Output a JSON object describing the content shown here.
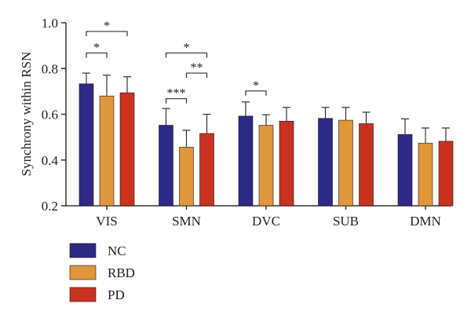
{
  "chart_data": {
    "type": "bar",
    "title": "",
    "xlabel": "",
    "ylabel": "Synchrony within RSN",
    "ylim": [
      0.2,
      1.0
    ],
    "yticks": [
      0.2,
      0.4,
      0.6,
      0.8,
      1.0
    ],
    "ytick_labels": [
      "0.2",
      "0.4",
      "0.6",
      "0.8",
      "1.0"
    ],
    "grid": false,
    "legend_position": "bottom-left",
    "categories": [
      "VIS",
      "SMN",
      "DVC",
      "SUB",
      "DMN"
    ],
    "series": [
      {
        "name": "NC",
        "color": "#2d2a86",
        "values": [
          0.733,
          0.552,
          0.592,
          0.582,
          0.512
        ],
        "errors": [
          0.047,
          0.073,
          0.062,
          0.048,
          0.068
        ]
      },
      {
        "name": "RBD",
        "color": "#e0963a",
        "values": [
          0.68,
          0.456,
          0.552,
          0.574,
          0.474
        ],
        "errors": [
          0.091,
          0.074,
          0.046,
          0.056,
          0.066
        ]
      },
      {
        "name": "PD",
        "color": "#c8321f",
        "values": [
          0.694,
          0.516,
          0.57,
          0.559,
          0.482
        ],
        "errors": [
          0.07,
          0.084,
          0.06,
          0.05,
          0.058
        ]
      }
    ],
    "significance": [
      {
        "category": "VIS",
        "from": "NC",
        "to": "RBD",
        "label": "*",
        "y": 0.868
      },
      {
        "category": "VIS",
        "from": "NC",
        "to": "PD",
        "label": "*",
        "y": 0.962
      },
      {
        "category": "SMN",
        "from": "NC",
        "to": "RBD",
        "label": "***",
        "y": 0.668
      },
      {
        "category": "SMN",
        "from": "RBD",
        "to": "PD",
        "label": "**",
        "y": 0.78
      },
      {
        "category": "SMN",
        "from": "NC",
        "to": "PD",
        "label": "*",
        "y": 0.868
      },
      {
        "category": "DVC",
        "from": "NC",
        "to": "RBD",
        "label": "*",
        "y": 0.702
      }
    ]
  }
}
